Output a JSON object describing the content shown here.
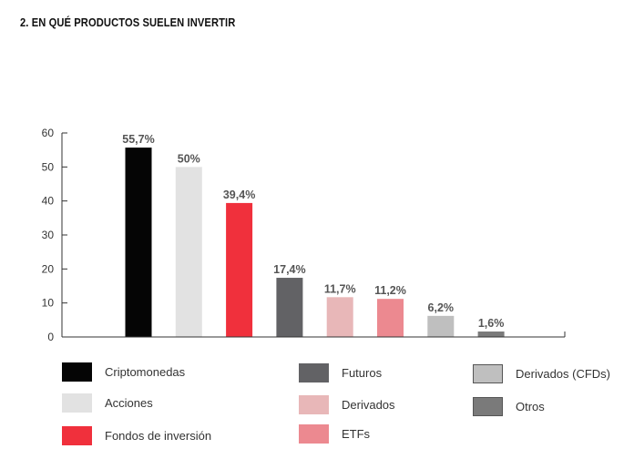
{
  "title": "2. EN QUÉ PRODUCTOS SUELEN INVERTIR",
  "chart_data": {
    "type": "bar",
    "categories": [
      "Criptomonedas",
      "Acciones",
      "Fondos de inversión",
      "Futuros",
      "Derivados",
      "ETFs",
      "Derivados (CFDs)",
      "Otros"
    ],
    "values": [
      55.7,
      50,
      39.4,
      17.4,
      11.7,
      11.2,
      6.2,
      1.6
    ],
    "data_labels": [
      "55,7%",
      "50%",
      "39,4%",
      "17,4%",
      "11,7%",
      "11,2%",
      "6,2%",
      "1,6%"
    ],
    "colors": [
      "#050505",
      "#e2e2e2",
      "#f0303c",
      "#626265",
      "#e8b7b8",
      "#ec8990",
      "#bfbfbf",
      "#7a7a7a"
    ],
    "ylim": [
      0,
      60
    ],
    "yticks": [
      "0",
      "10",
      "20",
      "30",
      "40",
      "50",
      "60"
    ],
    "grid": false,
    "legend_position": "bottom"
  },
  "legend": {
    "columns": [
      [
        0,
        1,
        2
      ],
      [
        3,
        4,
        5
      ],
      [
        6,
        7
      ]
    ]
  }
}
